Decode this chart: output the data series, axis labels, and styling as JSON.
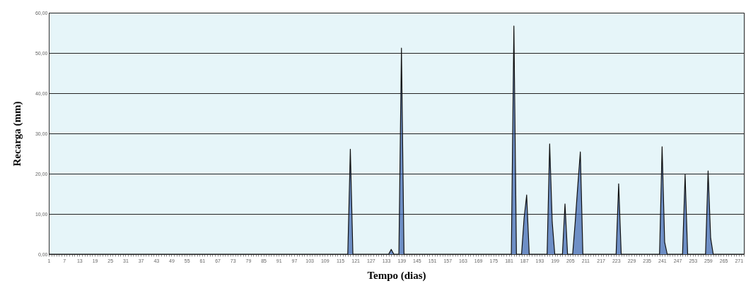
{
  "chart_data": {
    "type": "area",
    "xlabel": "Tempo (dias)",
    "ylabel": "Recarga (mm)",
    "categories": [
      "1",
      null,
      null,
      null,
      null,
      null,
      "7",
      null,
      null,
      null,
      null,
      null,
      "13",
      null,
      null,
      null,
      null,
      null,
      "19",
      null,
      null,
      null,
      null,
      null,
      "25",
      null,
      null,
      null,
      null,
      null,
      "31",
      null,
      null,
      null,
      null,
      null,
      "37",
      null,
      null,
      null,
      null,
      null,
      "43",
      null,
      null,
      null,
      null,
      null,
      "49",
      null,
      null,
      null,
      null,
      null,
      "55",
      null,
      null,
      null,
      null,
      null,
      "61",
      null,
      null,
      null,
      null,
      null,
      "67",
      null,
      null,
      null,
      null,
      null,
      "73",
      null,
      null,
      null,
      null,
      null,
      "79",
      null,
      null,
      null,
      null,
      null,
      "85",
      null,
      null,
      null,
      null,
      null,
      "91",
      null,
      null,
      null,
      null,
      null,
      "97",
      null,
      null,
      null,
      null,
      null,
      "103",
      null,
      null,
      null,
      null,
      null,
      "109",
      null,
      null,
      null,
      null,
      null,
      "115",
      null,
      null,
      null,
      null,
      null,
      "121",
      null,
      null,
      null,
      null,
      null,
      "127",
      null,
      null,
      null,
      null,
      null,
      "133",
      null,
      null,
      null,
      null,
      null,
      "139",
      null,
      null,
      null,
      null,
      null,
      "145",
      null,
      null,
      null,
      null,
      null,
      "151",
      null,
      null,
      null,
      null,
      null,
      "157",
      null,
      null,
      null,
      null,
      null,
      "163",
      null,
      null,
      null,
      null,
      null,
      "169",
      null,
      null,
      null,
      null,
      null,
      "175",
      null,
      null,
      null,
      null,
      null,
      "181",
      null,
      null,
      null,
      null,
      null,
      "187",
      null,
      null,
      null,
      null,
      null,
      "193",
      null,
      null,
      null,
      null,
      null,
      "199",
      null,
      null,
      null,
      null,
      null,
      "205",
      null,
      null,
      null,
      null,
      null,
      "211",
      null,
      null,
      null,
      null,
      null,
      "217",
      null,
      null,
      null,
      null,
      null,
      "223",
      null,
      null,
      null,
      null,
      null,
      "229",
      null,
      null,
      null,
      null,
      null,
      "235",
      null,
      null,
      null,
      null,
      null,
      "241",
      null,
      null,
      null,
      null,
      null,
      "247",
      null,
      null,
      null,
      null,
      null,
      "253",
      null,
      null,
      null,
      null,
      null,
      "259",
      null,
      null,
      null,
      null,
      null,
      "265",
      null,
      null,
      null,
      null,
      null,
      "271",
      null,
      null
    ],
    "series": [
      {
        "color": "#3a64b0",
        "values": [
          0,
          0,
          0,
          0,
          0,
          0,
          0,
          0,
          0,
          0,
          0,
          0,
          0,
          0,
          0,
          0,
          0,
          0,
          0,
          0,
          0,
          0,
          0,
          0,
          0,
          0,
          0,
          0,
          0,
          0,
          0,
          0,
          0,
          0,
          0,
          0,
          0,
          0,
          0,
          0,
          0,
          0,
          0,
          0,
          0,
          0,
          0,
          0,
          0,
          0,
          0,
          0,
          0,
          0,
          0,
          0,
          0,
          0,
          0,
          0,
          0,
          0,
          0,
          0,
          0,
          0,
          0,
          0,
          0,
          0,
          0,
          0,
          0,
          0,
          0,
          0,
          0,
          0,
          0,
          0,
          0,
          0,
          0,
          0,
          0,
          0,
          0,
          0,
          0,
          0,
          0,
          0,
          0,
          0,
          0,
          0,
          0,
          0,
          0,
          0,
          0,
          0,
          0,
          0,
          0,
          0,
          0,
          0,
          0,
          0,
          0,
          0,
          0,
          0,
          0,
          0,
          0,
          0,
          26.1,
          0,
          0,
          0,
          0,
          0,
          0,
          0,
          0,
          0,
          0,
          0,
          0,
          0,
          0,
          0,
          1.2,
          0,
          0,
          0,
          51.2,
          0,
          0,
          0,
          0,
          0,
          0,
          0,
          0,
          0,
          0,
          0,
          0,
          0,
          0,
          0,
          0,
          0,
          0,
          0,
          0,
          0,
          0,
          0,
          0,
          0,
          0,
          0,
          0,
          0,
          0,
          0,
          0,
          0,
          0,
          0,
          0,
          0,
          0,
          0,
          0,
          0,
          0,
          0,
          56.7,
          0,
          0,
          0,
          9,
          14.7,
          0,
          0,
          0,
          0,
          0,
          0,
          0,
          0,
          27.4,
          8,
          0,
          0,
          0,
          0,
          12.5,
          0,
          0,
          0,
          8,
          17,
          25.4,
          0,
          0,
          0,
          0,
          0,
          0,
          0,
          0,
          0,
          0,
          0,
          0,
          0,
          0,
          17.5,
          0,
          0,
          0,
          0,
          0,
          0,
          0,
          0,
          0,
          0,
          0,
          0,
          0,
          0,
          0,
          0,
          26.7,
          3,
          0,
          0,
          0,
          0,
          0,
          0,
          0,
          19.8,
          0,
          0,
          0,
          0,
          0,
          0,
          0,
          0,
          20.7,
          4,
          0,
          0,
          0,
          0,
          0,
          0,
          0,
          0,
          0,
          0,
          0,
          0,
          0
        ]
      }
    ],
    "ylim": [
      0,
      60
    ],
    "yticks": [
      {
        "value": 0,
        "label": "0,00"
      },
      {
        "value": 10,
        "label": "10,00"
      },
      {
        "value": 20,
        "label": "20,00"
      },
      {
        "value": 30,
        "label": "30,00"
      },
      {
        "value": 40,
        "label": "40,00"
      },
      {
        "value": 50,
        "label": "50,00"
      },
      {
        "value": 60,
        "label": "60,00"
      }
    ],
    "grid": "y"
  }
}
